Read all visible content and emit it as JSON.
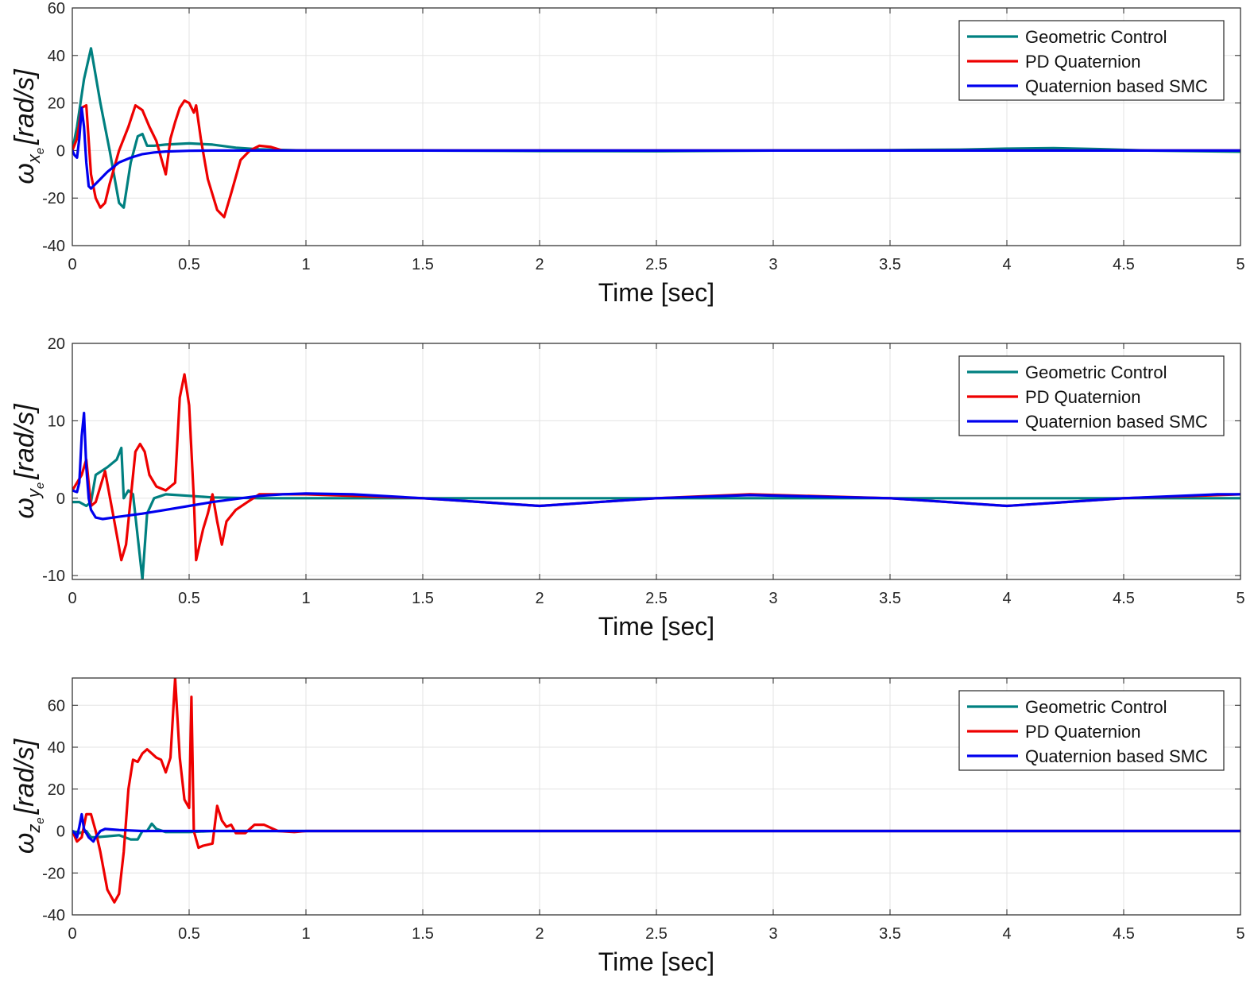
{
  "chart_data": [
    {
      "type": "line",
      "title": "",
      "xlabel": "Time [sec]",
      "ylabel": "ω_xe [rad/s]",
      "ylabel_parts": {
        "symbol": "ω",
        "sub_main": "x",
        "sub_sub": "e",
        "units": "[rad/s]"
      },
      "xlim": [
        0,
        5
      ],
      "ylim": [
        -40,
        60
      ],
      "xticks": [
        "0",
        "0.5",
        "1",
        "1.5",
        "2",
        "2.5",
        "3",
        "3.5",
        "4",
        "4.5",
        "5"
      ],
      "yticks": [
        "-40",
        "-20",
        "0",
        "20",
        "40",
        "60"
      ],
      "grid": true,
      "legend_position": "top-right",
      "series": [
        {
          "name": "Geometric Control",
          "color": "#008080",
          "x": [
            0,
            0.02,
            0.05,
            0.08,
            0.12,
            0.16,
            0.2,
            0.22,
            0.25,
            0.28,
            0.3,
            0.32,
            0.35,
            0.4,
            0.5,
            0.6,
            0.7,
            0.8,
            1.0,
            1.5,
            2.0,
            2.5,
            3.0,
            3.5,
            3.8,
            4.0,
            4.2,
            4.4,
            4.6,
            5.0
          ],
          "y": [
            0,
            10,
            30,
            43,
            20,
            0,
            -22,
            -24,
            -5,
            6,
            7,
            2,
            2,
            2.5,
            3,
            2.5,
            1.2,
            0.5,
            0,
            0,
            -0.2,
            -0.3,
            0,
            0.2,
            0.4,
            0.8,
            1.0,
            0.6,
            0,
            -0.5
          ]
        },
        {
          "name": "PD Quaternion",
          "color": "#ee0000",
          "x": [
            0,
            0.02,
            0.04,
            0.06,
            0.08,
            0.1,
            0.12,
            0.14,
            0.16,
            0.2,
            0.24,
            0.27,
            0.3,
            0.33,
            0.36,
            0.38,
            0.4,
            0.42,
            0.44,
            0.46,
            0.48,
            0.5,
            0.52,
            0.53,
            0.55,
            0.58,
            0.62,
            0.65,
            0.68,
            0.72,
            0.76,
            0.8,
            0.85,
            0.9,
            1.0,
            2.0,
            3.0,
            4.0,
            5.0
          ],
          "y": [
            0,
            5,
            18,
            19,
            -10,
            -20,
            -24,
            -22,
            -14,
            0,
            10,
            19,
            17,
            10,
            4,
            -3,
            -10,
            5,
            12,
            18,
            21,
            20,
            16,
            19,
            5,
            -12,
            -25,
            -28,
            -18,
            -4,
            0,
            2,
            1.5,
            0,
            0,
            0,
            0,
            0,
            0
          ]
        },
        {
          "name": "Quaternion based SMC",
          "color": "#0000ee",
          "x": [
            0,
            0.01,
            0.02,
            0.03,
            0.04,
            0.05,
            0.06,
            0.07,
            0.08,
            0.1,
            0.15,
            0.2,
            0.25,
            0.3,
            0.35,
            0.4,
            0.5,
            0.6,
            0.8,
            1.0,
            2.0,
            3.0,
            4.0,
            5.0
          ],
          "y": [
            0,
            -2,
            -3,
            5,
            18,
            10,
            -5,
            -15,
            -16,
            -14,
            -9,
            -5,
            -3,
            -1.5,
            -0.8,
            -0.4,
            -0.1,
            0,
            0,
            0,
            0,
            0,
            0,
            0
          ]
        }
      ]
    },
    {
      "type": "line",
      "title": "",
      "xlabel": "Time [sec]",
      "ylabel": "ω_ye [rad/s]",
      "ylabel_parts": {
        "symbol": "ω",
        "sub_main": "y",
        "sub_sub": "e",
        "units": "[rad/s]"
      },
      "xlim": [
        0,
        5
      ],
      "ylim": [
        -10.5,
        20
      ],
      "xticks": [
        "0",
        "0.5",
        "1",
        "1.5",
        "2",
        "2.5",
        "3",
        "3.5",
        "4",
        "4.5",
        "5"
      ],
      "yticks": [
        "-10",
        "0",
        "10",
        "20"
      ],
      "grid": true,
      "legend_position": "top-right",
      "series": [
        {
          "name": "Geometric Control",
          "color": "#008080",
          "x": [
            0,
            0.03,
            0.06,
            0.08,
            0.1,
            0.15,
            0.19,
            0.21,
            0.22,
            0.24,
            0.26,
            0.28,
            0.3,
            0.32,
            0.35,
            0.4,
            0.5,
            0.6,
            0.8,
            1.0,
            2.0,
            3.0,
            4.0,
            5.0
          ],
          "y": [
            -0.5,
            -0.5,
            -1,
            -0.5,
            3,
            4,
            5,
            6.5,
            0,
            1,
            0.5,
            -5,
            -10.5,
            -2,
            0,
            0.5,
            0.3,
            0.1,
            0,
            0,
            0,
            0,
            0,
            0
          ]
        },
        {
          "name": "PD Quaternion",
          "color": "#ee0000",
          "x": [
            0,
            0.02,
            0.04,
            0.06,
            0.08,
            0.1,
            0.14,
            0.18,
            0.21,
            0.23,
            0.25,
            0.27,
            0.29,
            0.31,
            0.33,
            0.36,
            0.4,
            0.44,
            0.46,
            0.48,
            0.5,
            0.52,
            0.53,
            0.56,
            0.58,
            0.6,
            0.62,
            0.64,
            0.66,
            0.7,
            0.75,
            0.8,
            0.9,
            1.0,
            1.5,
            2.0,
            2.5,
            2.9,
            3.5,
            4.0,
            4.5,
            5.0
          ],
          "y": [
            1,
            2,
            3,
            5,
            -1,
            -0.5,
            3.5,
            -3,
            -8,
            -6,
            0,
            6,
            7,
            6,
            3,
            1.5,
            1,
            2,
            13,
            16,
            12,
            0,
            -8,
            -4,
            -2,
            0.5,
            -3,
            -6,
            -3,
            -1.5,
            -0.5,
            0.5,
            0.5,
            0.5,
            0,
            -1,
            0,
            0.5,
            0,
            -1,
            0,
            0.5
          ]
        },
        {
          "name": "Quaternion based SMC",
          "color": "#0000ee",
          "x": [
            0,
            0.02,
            0.03,
            0.04,
            0.05,
            0.06,
            0.07,
            0.08,
            0.1,
            0.13,
            0.2,
            0.3,
            0.4,
            0.5,
            0.6,
            0.7,
            0.8,
            0.9,
            1.0,
            1.2,
            1.5,
            2.0,
            2.5,
            2.9,
            3.5,
            4.0,
            4.5,
            4.9,
            5.0
          ],
          "y": [
            1,
            0.8,
            2,
            8,
            11,
            4,
            0,
            -1.5,
            -2.5,
            -2.7,
            -2.4,
            -2,
            -1.5,
            -1,
            -0.5,
            -0.1,
            0.3,
            0.5,
            0.6,
            0.5,
            0,
            -1,
            0,
            0.4,
            0,
            -1,
            0,
            0.5,
            0.5
          ]
        }
      ]
    },
    {
      "type": "line",
      "title": "",
      "xlabel": "Time [sec]",
      "ylabel": "ω_ze [rad/s]",
      "ylabel_parts": {
        "symbol": "ω",
        "sub_main": "z",
        "sub_sub": "e",
        "units": "[rad/s]"
      },
      "xlim": [
        0,
        5
      ],
      "ylim": [
        -40,
        73
      ],
      "xticks": [
        "0",
        "0.5",
        "1",
        "1.5",
        "2",
        "2.5",
        "3",
        "3.5",
        "4",
        "4.5",
        "5"
      ],
      "yticks": [
        "-40",
        "-20",
        "0",
        "20",
        "40",
        "60"
      ],
      "grid": true,
      "legend_position": "top-right",
      "series": [
        {
          "name": "Geometric Control",
          "color": "#008080",
          "x": [
            0,
            0.03,
            0.06,
            0.08,
            0.1,
            0.15,
            0.2,
            0.25,
            0.28,
            0.3,
            0.32,
            0.34,
            0.36,
            0.4,
            0.5,
            0.6,
            0.8,
            1.0,
            5.0
          ],
          "y": [
            0,
            -1,
            0,
            -3,
            -3,
            -2.5,
            -2,
            -4,
            -4,
            0,
            0,
            3.5,
            1,
            -0.5,
            -0.5,
            0,
            0,
            0,
            0
          ]
        },
        {
          "name": "PD Quaternion",
          "color": "#ee0000",
          "x": [
            0,
            0.02,
            0.04,
            0.06,
            0.08,
            0.1,
            0.12,
            0.15,
            0.18,
            0.2,
            0.22,
            0.24,
            0.26,
            0.28,
            0.3,
            0.32,
            0.34,
            0.36,
            0.38,
            0.4,
            0.42,
            0.44,
            0.46,
            0.48,
            0.5,
            0.51,
            0.52,
            0.54,
            0.56,
            0.6,
            0.62,
            0.64,
            0.66,
            0.68,
            0.7,
            0.74,
            0.78,
            0.82,
            0.88,
            0.95,
            1.0,
            5.0
          ],
          "y": [
            0,
            -5,
            -3,
            8,
            8,
            0,
            -10,
            -28,
            -34,
            -30,
            -10,
            20,
            34,
            33,
            37,
            39,
            37,
            35,
            34,
            28,
            35,
            73,
            35,
            15,
            11,
            64,
            0,
            -8,
            -7,
            -6,
            12,
            5,
            2,
            3,
            -1,
            -1,
            3,
            3,
            0,
            -0.5,
            0,
            0
          ]
        },
        {
          "name": "Quaternion based SMC",
          "color": "#0000ee",
          "x": [
            0,
            0.01,
            0.02,
            0.03,
            0.04,
            0.05,
            0.06,
            0.07,
            0.08,
            0.09,
            0.1,
            0.12,
            0.14,
            0.2,
            0.3,
            0.5,
            1.0,
            5.0
          ],
          "y": [
            0,
            -1,
            -3,
            2,
            8,
            1,
            -1,
            -3,
            -4,
            -5,
            -3,
            0,
            1,
            0.5,
            0,
            0,
            0,
            0
          ]
        }
      ]
    }
  ]
}
